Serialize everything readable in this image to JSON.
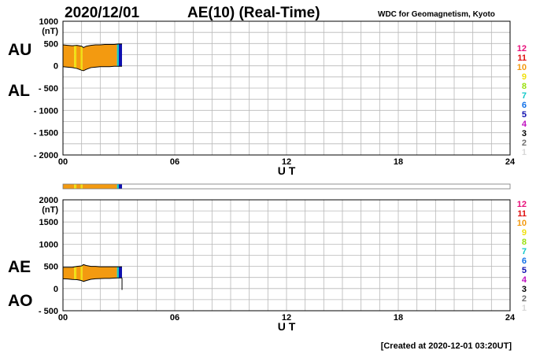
{
  "header": {
    "date": "2020/12/01",
    "title": "AE(10) (Real-Time)",
    "credit": "WDC for Geomagnetism, Kyoto"
  },
  "footer": {
    "created": "[Created at 2020-12-01 03:20UT]"
  },
  "station_scale": [
    "12",
    "11",
    "10",
    "9",
    "8",
    "7",
    "6",
    "5",
    "4",
    "3",
    "2",
    "1"
  ],
  "station_colors": [
    "#e8107a",
    "#e01010",
    "#f39a10",
    "#f0e010",
    "#9ae010",
    "#10c8c8",
    "#1070e8",
    "#1010b0",
    "#c010c0",
    "#000000",
    "#707070",
    "#d8d8d8"
  ],
  "chart_data": [
    {
      "type": "area",
      "panel": "AU/AL",
      "label_upper": "AU",
      "label_lower": "AL",
      "y_unit": "(nT)",
      "ylim": [
        -2000,
        1000
      ],
      "yticks": [
        1000,
        500,
        0,
        -500,
        -1000,
        -1500,
        -2000
      ],
      "ytick_labels": [
        "1000",
        "500",
        "0",
        "- 500",
        "- 1000",
        "- 1500",
        "- 2000"
      ],
      "xlim": [
        0,
        24
      ],
      "xticks": [
        0,
        6,
        12,
        18,
        24
      ],
      "xtick_labels": [
        "00",
        "06",
        "12",
        "18",
        "24"
      ],
      "xlabel": "U T",
      "grid": true,
      "x": [
        0,
        0.25,
        0.5,
        0.75,
        1.0,
        1.1,
        1.25,
        1.5,
        1.75,
        2.0,
        2.25,
        2.5,
        2.75,
        3.0,
        3.17
      ],
      "series": [
        {
          "name": "AU",
          "values": [
            470,
            460,
            450,
            460,
            440,
            410,
            440,
            460,
            470,
            470,
            480,
            480,
            480,
            490,
            490
          ]
        },
        {
          "name": "AL",
          "values": [
            -20,
            -30,
            -40,
            -60,
            -100,
            -110,
            -80,
            -40,
            -30,
            -20,
            -20,
            -20,
            -10,
            -10,
            -10
          ]
        }
      ],
      "active_stations_end_hour": 3.17,
      "station_bands": [
        {
          "start": 0,
          "end": 0.6,
          "level": 10
        },
        {
          "start": 0.6,
          "end": 0.72,
          "level": 9
        },
        {
          "start": 0.72,
          "end": 0.95,
          "level": 10
        },
        {
          "start": 0.95,
          "end": 1.05,
          "level": 9
        },
        {
          "start": 1.05,
          "end": 2.9,
          "level": 10
        },
        {
          "start": 2.9,
          "end": 3.0,
          "level": 7
        },
        {
          "start": 3.0,
          "end": 3.17,
          "level": 5
        }
      ]
    },
    {
      "type": "area",
      "panel": "AE/AO",
      "label_upper": "AE",
      "label_lower": "AO",
      "y_unit": "(nT)",
      "ylim": [
        -500,
        2000
      ],
      "yticks": [
        2000,
        1500,
        1000,
        500,
        0,
        -500
      ],
      "ytick_labels": [
        "2000",
        "1500",
        "1000",
        "500",
        "0",
        "- 500"
      ],
      "xlim": [
        0,
        24
      ],
      "xticks": [
        0,
        6,
        12,
        18,
        24
      ],
      "xtick_labels": [
        "00",
        "06",
        "12",
        "18",
        "24"
      ],
      "xlabel": "U T",
      "grid": true,
      "x": [
        0,
        0.25,
        0.5,
        0.75,
        1.0,
        1.1,
        1.25,
        1.5,
        1.75,
        2.0,
        2.25,
        2.5,
        2.75,
        3.0,
        3.17
      ],
      "series": [
        {
          "name": "AE",
          "values": [
            480,
            480,
            480,
            500,
            510,
            540,
            520,
            500,
            500,
            490,
            490,
            490,
            490,
            490,
            490
          ]
        },
        {
          "name": "AO",
          "values": [
            220,
            215,
            205,
            200,
            180,
            160,
            180,
            210,
            220,
            225,
            230,
            230,
            235,
            240,
            240
          ]
        }
      ],
      "drop_to": -30,
      "station_bands": [
        {
          "start": 0,
          "end": 0.6,
          "level": 10
        },
        {
          "start": 0.6,
          "end": 0.72,
          "level": 9
        },
        {
          "start": 0.72,
          "end": 0.95,
          "level": 10
        },
        {
          "start": 0.95,
          "end": 1.05,
          "level": 9
        },
        {
          "start": 1.05,
          "end": 2.9,
          "level": 10
        },
        {
          "start": 2.9,
          "end": 3.0,
          "level": 7
        },
        {
          "start": 3.0,
          "end": 3.17,
          "level": 5
        }
      ]
    }
  ]
}
